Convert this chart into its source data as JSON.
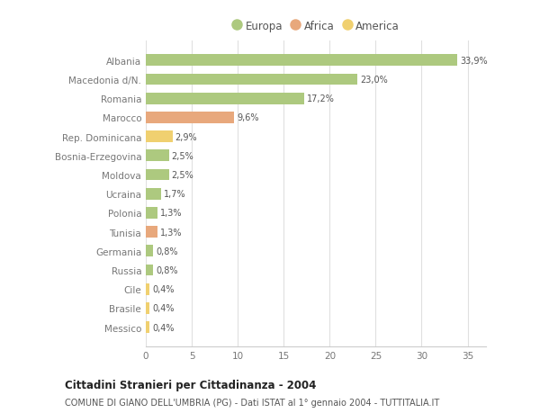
{
  "categories": [
    "Albania",
    "Macedonia d/N.",
    "Romania",
    "Marocco",
    "Rep. Dominicana",
    "Bosnia-Erzegovina",
    "Moldova",
    "Ucraina",
    "Polonia",
    "Tunisia",
    "Germania",
    "Russia",
    "Cile",
    "Brasile",
    "Messico"
  ],
  "values": [
    33.9,
    23.0,
    17.2,
    9.6,
    2.9,
    2.5,
    2.5,
    1.7,
    1.3,
    1.3,
    0.8,
    0.8,
    0.4,
    0.4,
    0.4
  ],
  "labels": [
    "33,9%",
    "23,0%",
    "17,2%",
    "9,6%",
    "2,9%",
    "2,5%",
    "2,5%",
    "1,7%",
    "1,3%",
    "1,3%",
    "0,8%",
    "0,8%",
    "0,4%",
    "0,4%",
    "0,4%"
  ],
  "continent": [
    "Europa",
    "Europa",
    "Europa",
    "Africa",
    "America",
    "Europa",
    "Europa",
    "Europa",
    "Europa",
    "Africa",
    "Europa",
    "Europa",
    "America",
    "America",
    "America"
  ],
  "colors": {
    "Europa": "#adc97f",
    "Africa": "#e8a87c",
    "America": "#f0d070"
  },
  "xlim": [
    0,
    37
  ],
  "xticks": [
    0,
    5,
    10,
    15,
    20,
    25,
    30,
    35
  ],
  "bg_color": "#ffffff",
  "grid_color": "#e0e0e0",
  "title1": "Cittadini Stranieri per Cittadinanza - 2004",
  "title2": "COMUNE DI GIANO DELL'UMBRIA (PG) - Dati ISTAT al 1° gennaio 2004 - TUTTITALIA.IT",
  "bar_height": 0.6,
  "figsize": [
    6.0,
    4.6
  ],
  "dpi": 100
}
